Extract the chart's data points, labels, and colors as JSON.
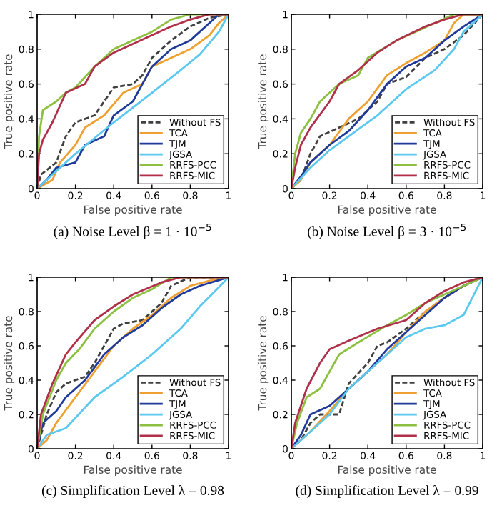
{
  "chart_data": [
    {
      "type": "line",
      "title": "(a) Noise Level β = 1 · 10$^{−5}$",
      "xlabel": "False positive rate",
      "ylabel": "True positive rate",
      "xlim": [
        0,
        1
      ],
      "ylim": [
        0,
        1
      ],
      "xticks": [
        0,
        0.2,
        0.4,
        0.6,
        0.8,
        1
      ],
      "yticks": [
        0,
        0.2,
        0.4,
        0.6,
        0.8,
        1
      ],
      "legend": "bottom right",
      "series": [
        {
          "name": "Without FS",
          "color": "#404040",
          "line_style": "dashed",
          "x": [
            0,
            0.02,
            0.1,
            0.15,
            0.2,
            0.3,
            0.35,
            0.4,
            0.5,
            0.55,
            0.6,
            0.7,
            0.8,
            0.9,
            1
          ],
          "values": [
            0,
            0.08,
            0.15,
            0.3,
            0.38,
            0.42,
            0.5,
            0.58,
            0.6,
            0.65,
            0.75,
            0.85,
            0.93,
            0.98,
            1
          ]
        },
        {
          "name": "TCA",
          "color": "#f0a030",
          "line_style": "solid",
          "x": [
            0,
            0.08,
            0.12,
            0.2,
            0.25,
            0.35,
            0.45,
            0.55,
            0.6,
            0.7,
            0.8,
            0.9,
            0.95,
            1
          ],
          "values": [
            0,
            0.05,
            0.15,
            0.25,
            0.35,
            0.42,
            0.55,
            0.6,
            0.7,
            0.75,
            0.8,
            0.88,
            0.95,
            1
          ]
        },
        {
          "name": "TJM",
          "color": "#1f3a9a",
          "line_style": "solid",
          "x": [
            0,
            0.05,
            0.1,
            0.2,
            0.25,
            0.35,
            0.4,
            0.5,
            0.55,
            0.6,
            0.7,
            0.8,
            0.85,
            0.9,
            0.95,
            1
          ],
          "values": [
            0,
            0.05,
            0.12,
            0.15,
            0.25,
            0.3,
            0.42,
            0.5,
            0.6,
            0.7,
            0.8,
            0.85,
            0.9,
            0.95,
            1,
            1
          ]
        },
        {
          "name": "JGSA",
          "color": "#5bc8f0",
          "line_style": "solid",
          "x": [
            0,
            0.1,
            0.2,
            0.4,
            0.6,
            0.75,
            0.85,
            0.95,
            1
          ],
          "values": [
            0,
            0.1,
            0.2,
            0.38,
            0.55,
            0.68,
            0.77,
            0.9,
            1
          ]
        },
        {
          "name": "RRFS-PCC",
          "color": "#8cc040",
          "line_style": "solid",
          "x": [
            0,
            0.01,
            0.03,
            0.1,
            0.15,
            0.2,
            0.3,
            0.4,
            0.5,
            0.6,
            0.7,
            0.8,
            1
          ],
          "values": [
            0,
            0.3,
            0.45,
            0.5,
            0.55,
            0.58,
            0.7,
            0.8,
            0.85,
            0.9,
            0.97,
            1,
            1
          ]
        },
        {
          "name": "RRFS-MIC",
          "color": "#b0304a",
          "line_style": "solid",
          "x": [
            0,
            0.01,
            0.03,
            0.08,
            0.15,
            0.25,
            0.3,
            0.4,
            0.5,
            0.6,
            0.7,
            0.8,
            0.9,
            1
          ],
          "values": [
            0,
            0.2,
            0.28,
            0.38,
            0.55,
            0.6,
            0.7,
            0.78,
            0.83,
            0.88,
            0.93,
            0.97,
            1,
            1
          ]
        }
      ]
    },
    {
      "type": "line",
      "title": "(b) Noise Level β = 3 · 10$^{−5}$",
      "xlabel": "False positive rate",
      "ylabel": "True positive rate",
      "xlim": [
        0,
        1
      ],
      "ylim": [
        0,
        1
      ],
      "xticks": [
        0,
        0.2,
        0.4,
        0.6,
        0.8,
        1
      ],
      "yticks": [
        0,
        0.2,
        0.4,
        0.6,
        0.8,
        1
      ],
      "legend": "bottom right",
      "series": [
        {
          "name": "Without FS",
          "color": "#404040",
          "line_style": "dashed",
          "x": [
            0,
            0.05,
            0.1,
            0.15,
            0.25,
            0.35,
            0.45,
            0.5,
            0.6,
            0.7,
            0.8,
            0.9,
            1
          ],
          "values": [
            0,
            0.05,
            0.2,
            0.3,
            0.35,
            0.4,
            0.5,
            0.6,
            0.64,
            0.75,
            0.8,
            0.88,
            1
          ]
        },
        {
          "name": "TCA",
          "color": "#f0a030",
          "line_style": "solid",
          "x": [
            0,
            0.05,
            0.1,
            0.2,
            0.3,
            0.4,
            0.5,
            0.6,
            0.7,
            0.8,
            0.85,
            0.9,
            1
          ],
          "values": [
            0,
            0.05,
            0.15,
            0.25,
            0.4,
            0.5,
            0.65,
            0.72,
            0.78,
            0.85,
            0.95,
            1,
            1
          ]
        },
        {
          "name": "TJM",
          "color": "#1f3a9a",
          "line_style": "solid",
          "x": [
            0,
            0.05,
            0.1,
            0.2,
            0.3,
            0.4,
            0.5,
            0.6,
            0.7,
            0.8,
            0.9,
            1
          ],
          "values": [
            0,
            0.07,
            0.15,
            0.25,
            0.33,
            0.45,
            0.6,
            0.7,
            0.75,
            0.85,
            0.93,
            1
          ]
        },
        {
          "name": "JGSA",
          "color": "#5bc8f0",
          "line_style": "solid",
          "x": [
            0,
            0.1,
            0.2,
            0.3,
            0.45,
            0.6,
            0.75,
            0.85,
            0.9,
            1
          ],
          "values": [
            0,
            0.12,
            0.22,
            0.3,
            0.42,
            0.57,
            0.68,
            0.8,
            0.9,
            1
          ]
        },
        {
          "name": "RRFS-PCC",
          "color": "#8cc040",
          "line_style": "solid",
          "x": [
            0,
            0.02,
            0.05,
            0.1,
            0.15,
            0.25,
            0.35,
            0.4,
            0.55,
            0.65,
            0.75,
            0.85,
            1
          ],
          "values": [
            0,
            0.2,
            0.32,
            0.4,
            0.5,
            0.6,
            0.65,
            0.75,
            0.85,
            0.9,
            0.95,
            1,
            1
          ]
        },
        {
          "name": "RRFS-MIC",
          "color": "#b0304a",
          "line_style": "solid",
          "x": [
            0,
            0.02,
            0.05,
            0.1,
            0.2,
            0.25,
            0.35,
            0.45,
            0.55,
            0.7,
            0.8,
            0.9,
            1
          ],
          "values": [
            0,
            0.12,
            0.25,
            0.35,
            0.5,
            0.6,
            0.68,
            0.78,
            0.85,
            0.93,
            0.97,
            1,
            1
          ]
        }
      ]
    },
    {
      "type": "line",
      "title": "(c) Simplification Level λ = 0.98",
      "xlabel": "False positive rate",
      "ylabel": "True positive rate",
      "xlim": [
        0,
        1
      ],
      "ylim": [
        0,
        1
      ],
      "xticks": [
        0,
        0.2,
        0.4,
        0.6,
        0.8,
        1
      ],
      "yticks": [
        0,
        0.2,
        0.4,
        0.6,
        0.8,
        1
      ],
      "legend": "bottom right",
      "series": [
        {
          "name": "Without FS",
          "color": "#404040",
          "line_style": "dashed",
          "x": [
            0,
            0.05,
            0.1,
            0.15,
            0.25,
            0.3,
            0.35,
            0.4,
            0.45,
            0.55,
            0.65,
            0.7,
            0.8,
            1
          ],
          "values": [
            0,
            0.2,
            0.33,
            0.38,
            0.42,
            0.5,
            0.6,
            0.7,
            0.73,
            0.75,
            0.85,
            0.95,
            1,
            1
          ]
        },
        {
          "name": "TCA",
          "color": "#f0a030",
          "line_style": "solid",
          "x": [
            0,
            0.05,
            0.1,
            0.2,
            0.3,
            0.4,
            0.5,
            0.6,
            0.7,
            0.8,
            0.9,
            1
          ],
          "values": [
            0,
            0.05,
            0.15,
            0.3,
            0.45,
            0.6,
            0.7,
            0.78,
            0.88,
            0.95,
            0.98,
            1
          ]
        },
        {
          "name": "TJM",
          "color": "#1f3a9a",
          "line_style": "solid",
          "x": [
            0,
            0.03,
            0.1,
            0.15,
            0.25,
            0.35,
            0.45,
            0.55,
            0.65,
            0.75,
            0.85,
            1
          ],
          "values": [
            0,
            0.15,
            0.22,
            0.3,
            0.4,
            0.55,
            0.65,
            0.72,
            0.82,
            0.9,
            0.95,
            1
          ]
        },
        {
          "name": "JGSA",
          "color": "#5bc8f0",
          "line_style": "solid",
          "x": [
            0,
            0.05,
            0.15,
            0.3,
            0.45,
            0.6,
            0.75,
            0.85,
            0.93,
            1
          ],
          "values": [
            0,
            0.08,
            0.12,
            0.3,
            0.42,
            0.55,
            0.7,
            0.83,
            0.92,
            1
          ]
        },
        {
          "name": "RRFS-PCC",
          "color": "#8cc040",
          "line_style": "solid",
          "x": [
            0,
            0.03,
            0.1,
            0.15,
            0.22,
            0.3,
            0.4,
            0.5,
            0.6,
            0.7,
            1
          ],
          "values": [
            0,
            0.2,
            0.4,
            0.5,
            0.58,
            0.7,
            0.8,
            0.88,
            0.93,
            1,
            1
          ]
        },
        {
          "name": "RRFS-MIC",
          "color": "#b0304a",
          "line_style": "solid",
          "x": [
            0,
            0.02,
            0.08,
            0.15,
            0.2,
            0.3,
            0.4,
            0.5,
            0.65,
            0.75,
            1
          ],
          "values": [
            0,
            0.2,
            0.38,
            0.55,
            0.62,
            0.75,
            0.83,
            0.9,
            0.97,
            1,
            1
          ]
        }
      ]
    },
    {
      "type": "line",
      "title": "(d) Simplification Level λ = 0.99",
      "xlabel": "False positive rate",
      "ylabel": "True positive rate",
      "xlim": [
        0,
        1
      ],
      "ylim": [
        0,
        1
      ],
      "xticks": [
        0,
        0.2,
        0.4,
        0.6,
        0.8,
        1
      ],
      "yticks": [
        0,
        0.2,
        0.4,
        0.6,
        0.8,
        1
      ],
      "legend": "bottom right",
      "series": [
        {
          "name": "Without FS",
          "color": "#404040",
          "line_style": "dashed",
          "x": [
            0,
            0.05,
            0.1,
            0.15,
            0.25,
            0.3,
            0.4,
            0.45,
            0.5,
            0.6,
            0.7,
            0.8,
            0.9,
            1
          ],
          "values": [
            0,
            0.05,
            0.15,
            0.2,
            0.2,
            0.38,
            0.5,
            0.6,
            0.62,
            0.7,
            0.8,
            0.88,
            0.95,
            1
          ]
        },
        {
          "name": "TCA",
          "color": "#f0a030",
          "line_style": "solid",
          "x": [
            0,
            0.1,
            0.2,
            0.3,
            0.4,
            0.5,
            0.6,
            0.7,
            0.8,
            0.9,
            1
          ],
          "values": [
            0,
            0.1,
            0.22,
            0.35,
            0.45,
            0.55,
            0.68,
            0.8,
            0.88,
            0.95,
            1
          ]
        },
        {
          "name": "TJM",
          "color": "#1f3a9a",
          "line_style": "solid",
          "x": [
            0,
            0.05,
            0.1,
            0.2,
            0.3,
            0.4,
            0.5,
            0.6,
            0.7,
            0.8,
            0.9,
            1
          ],
          "values": [
            0,
            0.08,
            0.2,
            0.25,
            0.35,
            0.45,
            0.58,
            0.68,
            0.78,
            0.88,
            0.95,
            1
          ]
        },
        {
          "name": "JGSA",
          "color": "#5bc8f0",
          "line_style": "solid",
          "x": [
            0,
            0.1,
            0.2,
            0.3,
            0.45,
            0.6,
            0.7,
            0.8,
            0.9,
            1
          ],
          "values": [
            0,
            0.1,
            0.2,
            0.35,
            0.5,
            0.65,
            0.7,
            0.72,
            0.78,
            1
          ]
        },
        {
          "name": "RRFS-PCC",
          "color": "#8cc040",
          "line_style": "solid",
          "x": [
            0,
            0.03,
            0.08,
            0.15,
            0.25,
            0.35,
            0.5,
            0.6,
            0.7,
            0.8,
            0.9,
            1
          ],
          "values": [
            0,
            0.15,
            0.3,
            0.35,
            0.55,
            0.62,
            0.72,
            0.78,
            0.85,
            0.9,
            0.95,
            1
          ]
        },
        {
          "name": "RRFS-MIC",
          "color": "#b0304a",
          "line_style": "solid",
          "x": [
            0,
            0.02,
            0.08,
            0.15,
            0.2,
            0.3,
            0.45,
            0.6,
            0.7,
            0.8,
            0.9,
            1
          ],
          "values": [
            0,
            0.15,
            0.35,
            0.5,
            0.58,
            0.63,
            0.7,
            0.75,
            0.85,
            0.92,
            0.97,
            1
          ]
        }
      ]
    }
  ]
}
